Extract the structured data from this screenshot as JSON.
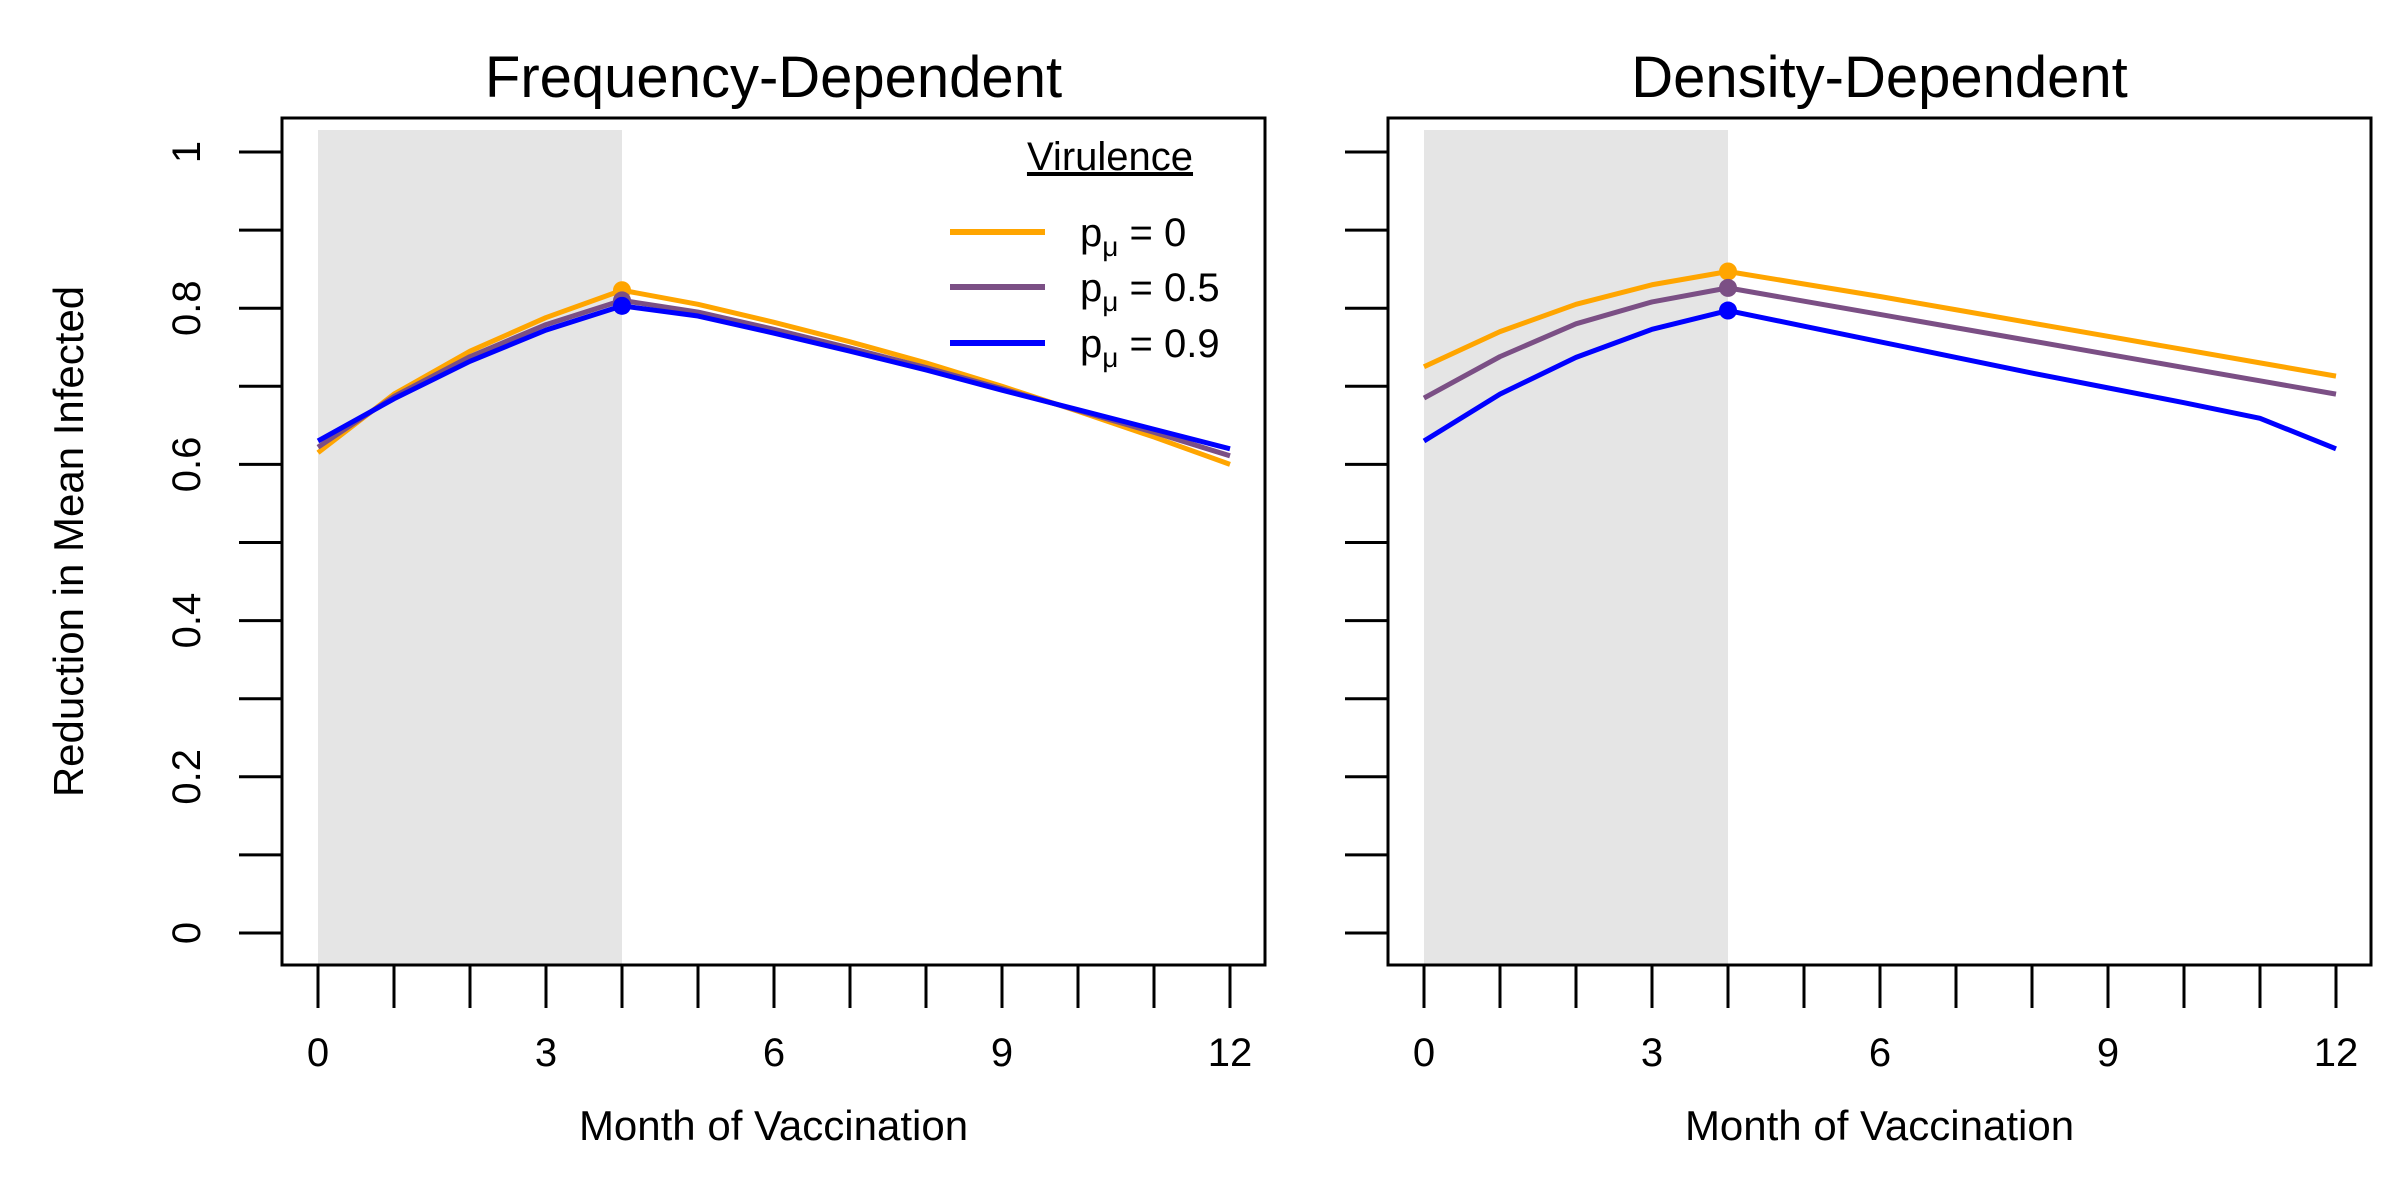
{
  "chart_data": [
    {
      "type": "line",
      "title": "Frequency-Dependent",
      "xlabel": "Month of Vaccination",
      "ylabel": "Reduction in Mean Infected",
      "xlim": [
        0,
        12
      ],
      "ylim": [
        0,
        1
      ],
      "xticks": [
        0,
        3,
        6,
        9,
        12
      ],
      "yticks": [
        0,
        0.2,
        0.4,
        0.6,
        0.8,
        1
      ],
      "shaded_region": [
        0,
        4
      ],
      "grid": false,
      "legend": {
        "title": "Virulence",
        "position": "top-right",
        "entries": [
          {
            "prefix": "p",
            "subscript": "μ",
            "suffix": " = 0",
            "color": "#FFA500"
          },
          {
            "prefix": "p",
            "subscript": "μ",
            "suffix": " = 0.5",
            "color": "#7B4F85"
          },
          {
            "prefix": "p",
            "subscript": "μ",
            "suffix": " = 0.9",
            "color": "#0000FF"
          }
        ]
      },
      "x": [
        0,
        1,
        2,
        3,
        4,
        5,
        6,
        7,
        8,
        9,
        10,
        11,
        12
      ],
      "peak_x": 4,
      "series": [
        {
          "color": "#FFA500",
          "values": [
            0.615,
            0.69,
            0.745,
            0.788,
            0.823,
            0.805,
            0.782,
            0.757,
            0.73,
            0.7,
            0.668,
            0.635,
            0.6
          ]
        },
        {
          "color": "#7B4F85",
          "values": [
            0.622,
            0.687,
            0.738,
            0.779,
            0.81,
            0.795,
            0.773,
            0.749,
            0.724,
            0.697,
            0.669,
            0.641,
            0.611
          ]
        },
        {
          "color": "#0000FF",
          "values": [
            0.63,
            0.684,
            0.732,
            0.772,
            0.803,
            0.79,
            0.768,
            0.745,
            0.721,
            0.695,
            0.67,
            0.645,
            0.62
          ]
        }
      ]
    },
    {
      "type": "line",
      "title": "Density-Dependent",
      "xlabel": "Month of Vaccination",
      "ylabel": "",
      "xlim": [
        0,
        12
      ],
      "ylim": [
        0,
        1
      ],
      "xticks": [
        0,
        3,
        6,
        9,
        12
      ],
      "yticks": [],
      "shaded_region": [
        0,
        4
      ],
      "grid": false,
      "x": [
        0,
        1,
        2,
        3,
        4,
        5,
        6,
        7,
        8,
        9,
        10,
        11,
        12
      ],
      "peak_x": 4,
      "series": [
        {
          "color": "#FFA500",
          "values": [
            0.725,
            0.77,
            0.805,
            0.83,
            0.847,
            0.831,
            0.815,
            0.798,
            0.781,
            0.764,
            0.747,
            0.73,
            0.713
          ]
        },
        {
          "color": "#7B4F85",
          "values": [
            0.685,
            0.738,
            0.78,
            0.808,
            0.826,
            0.809,
            0.792,
            0.775,
            0.758,
            0.741,
            0.724,
            0.707,
            0.69
          ]
        },
        {
          "color": "#0000FF",
          "values": [
            0.63,
            0.69,
            0.737,
            0.773,
            0.797,
            0.777,
            0.757,
            0.737,
            0.717,
            0.698,
            0.679,
            0.659,
            0.62
          ]
        }
      ]
    }
  ]
}
